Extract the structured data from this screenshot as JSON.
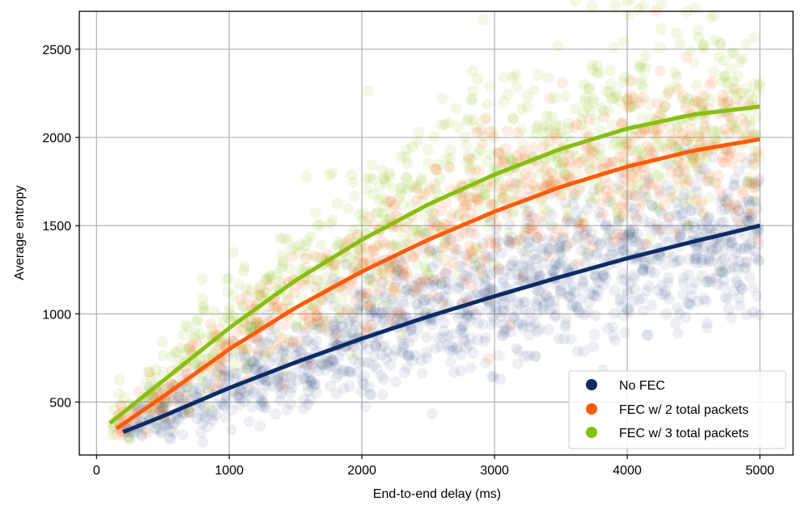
{
  "chart_data": {
    "type": "scatter",
    "title": "",
    "xlabel": "End-to-end delay (ms)",
    "ylabel": "Average entropy",
    "xlim": [
      -130,
      5250
    ],
    "ylim": [
      200,
      2715
    ],
    "xticks": [
      0,
      1000,
      2000,
      3000,
      4000,
      5000
    ],
    "yticks": [
      500,
      1000,
      1500,
      2000,
      2500
    ],
    "grid": true,
    "legend_position": "lower-right",
    "series": [
      {
        "name": "No FEC",
        "label": "No FEC",
        "color": "#0d2b66",
        "fit_x": [
          200,
          500,
          1000,
          1500,
          2000,
          2500,
          3000,
          3500,
          4000,
          4500,
          5000
        ],
        "fit_y": [
          330,
          420,
          580,
          725,
          860,
          985,
          1100,
          1210,
          1315,
          1410,
          1500
        ],
        "scatter_x_range": [
          200,
          5000
        ],
        "scatter_spread": 190
      },
      {
        "name": "FEC w/ 2 total packets",
        "label": "FEC w/ 2 total packets",
        "color": "#ff5a0a",
        "fit_x": [
          150,
          500,
          1000,
          1500,
          2000,
          2500,
          3000,
          3500,
          4000,
          4500,
          5000
        ],
        "fit_y": [
          350,
          530,
          800,
          1035,
          1240,
          1420,
          1580,
          1720,
          1835,
          1925,
          1990
        ],
        "scatter_x_range": [
          150,
          5000
        ],
        "scatter_spread": 200
      },
      {
        "name": "FEC w/ 3 total packets",
        "label": "FEC w/ 3 total packets",
        "color": "#86bf0d",
        "fit_x": [
          100,
          500,
          1000,
          1500,
          2000,
          2500,
          3000,
          3500,
          4000,
          4500,
          5000
        ],
        "fit_y": [
          380,
          620,
          920,
          1190,
          1420,
          1620,
          1790,
          1935,
          2050,
          2130,
          2175
        ],
        "scatter_x_range": [
          100,
          5000
        ],
        "scatter_spread": 260
      }
    ]
  }
}
